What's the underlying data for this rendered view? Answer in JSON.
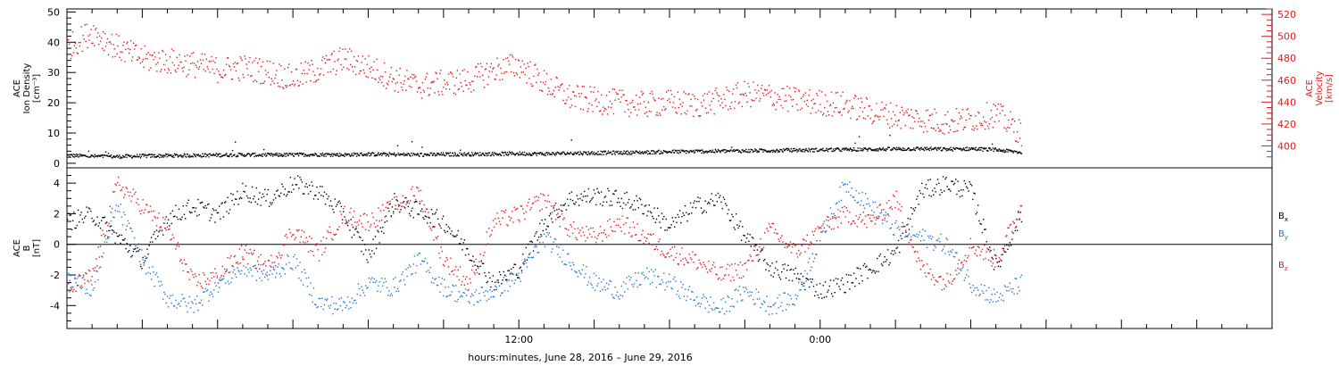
{
  "colors": {
    "black": "#000000",
    "red": "#e41a1c",
    "blue": "#1f78d1"
  },
  "chart_data": [
    {
      "type": "scatter",
      "panel": "top",
      "ylabel_lines": [
        "ACE",
        "Ion Density",
        "[cm⁻³]"
      ],
      "ylim": [
        -1.5,
        51
      ],
      "yticks": [
        0,
        10,
        20,
        30,
        40,
        50
      ],
      "y2label_lines": [
        "ACE",
        "Velocity",
        "[km/s]"
      ],
      "y2lim": [
        380,
        525
      ],
      "y2ticks": [
        400,
        420,
        440,
        460,
        480,
        500,
        520
      ],
      "xlim_hours": [
        0,
        48
      ],
      "series": [
        {
          "axis": "left",
          "color": "black",
          "x_hours": [
            0,
            1,
            2,
            3,
            4,
            5,
            6,
            7,
            8,
            9,
            10,
            11,
            12,
            13,
            14,
            15,
            16,
            17,
            18,
            19,
            20,
            21,
            22,
            23,
            24,
            25,
            26,
            27,
            28,
            29,
            30,
            31,
            32,
            33,
            34,
            35,
            36,
            37,
            38
          ],
          "values": [
            2.8,
            2.5,
            2.4,
            2.6,
            2.7,
            2.8,
            2.9,
            3.0,
            2.9,
            3.0,
            3.1,
            3.0,
            3.2,
            3.1,
            3.0,
            3.1,
            3.2,
            3.3,
            3.4,
            3.3,
            3.5,
            3.6,
            3.7,
            3.8,
            4.0,
            4.1,
            4.2,
            4.3,
            4.4,
            4.5,
            4.6,
            4.7,
            4.8,
            4.9,
            5.0,
            4.8,
            5.0,
            4.6,
            3.8
          ]
        },
        {
          "axis": "right",
          "color": "red",
          "x_hours": [
            0,
            1,
            2,
            3,
            4,
            5,
            6,
            7,
            8,
            9,
            10,
            11,
            12,
            13,
            14,
            15,
            16,
            17,
            18,
            19,
            20,
            21,
            22,
            23,
            24,
            25,
            26,
            27,
            28,
            29,
            30,
            31,
            32,
            33,
            34,
            35,
            36,
            37,
            38
          ],
          "values": [
            490,
            505,
            490,
            480,
            478,
            475,
            470,
            472,
            468,
            462,
            470,
            480,
            472,
            462,
            455,
            458,
            460,
            470,
            474,
            458,
            445,
            442,
            440,
            438,
            440,
            438,
            442,
            448,
            446,
            442,
            440,
            438,
            432,
            428,
            425,
            422,
            425,
            430,
            412
          ]
        }
      ]
    },
    {
      "type": "scatter",
      "panel": "bottom",
      "ylabel_lines": [
        "ACE",
        "B",
        "[nT]"
      ],
      "ylim": [
        -5.5,
        5
      ],
      "yticks": [
        -4,
        -2,
        0,
        2,
        4
      ],
      "zero_line": true,
      "xlim_hours": [
        0,
        48
      ],
      "xticks": [
        {
          "hour": 18,
          "label": "12:00"
        },
        {
          "hour": 30,
          "label": "0:00"
        }
      ],
      "xlabel": "hours:minutes, June 28, 2016 – June 29, 2016",
      "series": [
        {
          "name": "Bx",
          "color": "black",
          "x_hours": [
            0,
            1,
            2,
            3,
            4,
            5,
            6,
            7,
            8,
            9,
            10,
            11,
            12,
            13,
            14,
            15,
            16,
            17,
            18,
            19,
            20,
            21,
            22,
            23,
            24,
            25,
            26,
            27,
            28,
            29,
            30,
            31,
            32,
            33,
            34,
            35,
            36,
            37,
            38
          ],
          "values": [
            1.5,
            2.0,
            0.5,
            -1.0,
            1.8,
            2.5,
            2.0,
            3.5,
            3.0,
            4.0,
            3.5,
            2.0,
            -0.8,
            2.8,
            2.2,
            1.5,
            -0.5,
            -2.5,
            -1.5,
            1.5,
            3.0,
            3.2,
            3.0,
            2.5,
            1.2,
            2.5,
            3.0,
            0.5,
            -1.5,
            -2.0,
            -3.0,
            -2.5,
            -1.5,
            -0.5,
            3.5,
            4.0,
            3.5,
            -1.5,
            2.0
          ]
        },
        {
          "name": "By",
          "color": "blue",
          "x_hours": [
            0,
            1,
            2,
            3,
            4,
            5,
            6,
            7,
            8,
            9,
            10,
            11,
            12,
            13,
            14,
            15,
            16,
            17,
            18,
            19,
            20,
            21,
            22,
            23,
            24,
            25,
            26,
            27,
            28,
            29,
            30,
            31,
            32,
            33,
            34,
            35,
            36,
            37,
            38
          ],
          "values": [
            -2.0,
            -3.0,
            2.5,
            -1.0,
            -3.5,
            -4.0,
            -2.5,
            -1.5,
            -2.0,
            -1.0,
            -3.8,
            -4.0,
            -2.5,
            -2.8,
            -1.0,
            -2.8,
            -3.5,
            -3.0,
            -2.0,
            0.5,
            -1.0,
            -2.5,
            -3.0,
            -2.0,
            -2.5,
            -3.5,
            -4.2,
            -3.0,
            -4.0,
            -3.5,
            0.5,
            4.0,
            2.5,
            1.0,
            0.5,
            0.0,
            -2.5,
            -3.5,
            -2.5
          ]
        },
        {
          "name": "Bz",
          "color": "red",
          "x_hours": [
            0,
            1,
            2,
            3,
            4,
            5,
            6,
            7,
            8,
            9,
            10,
            11,
            12,
            13,
            14,
            15,
            16,
            17,
            18,
            19,
            20,
            21,
            22,
            23,
            24,
            25,
            26,
            27,
            28,
            29,
            30,
            31,
            32,
            33,
            34,
            35,
            36,
            37,
            38
          ],
          "values": [
            -3.0,
            -2.0,
            4.0,
            2.5,
            1.0,
            -2.5,
            -2.0,
            -0.5,
            -1.5,
            1.0,
            -0.5,
            2.0,
            1.5,
            2.5,
            3.5,
            -1.0,
            -2.5,
            1.5,
            2.0,
            3.0,
            1.0,
            0.5,
            1.5,
            0.5,
            -0.5,
            -1.0,
            -2.0,
            -1.5,
            1.0,
            -0.5,
            1.0,
            2.0,
            1.5,
            3.0,
            -1.5,
            -2.5,
            0.0,
            -1.0,
            2.5
          ]
        }
      ],
      "legend": [
        {
          "base": "B",
          "sub": "x",
          "color": "black"
        },
        {
          "base": "B",
          "sub": "y",
          "color": "blue"
        },
        {
          "base": "B",
          "sub": "z",
          "color": "red"
        }
      ]
    }
  ]
}
